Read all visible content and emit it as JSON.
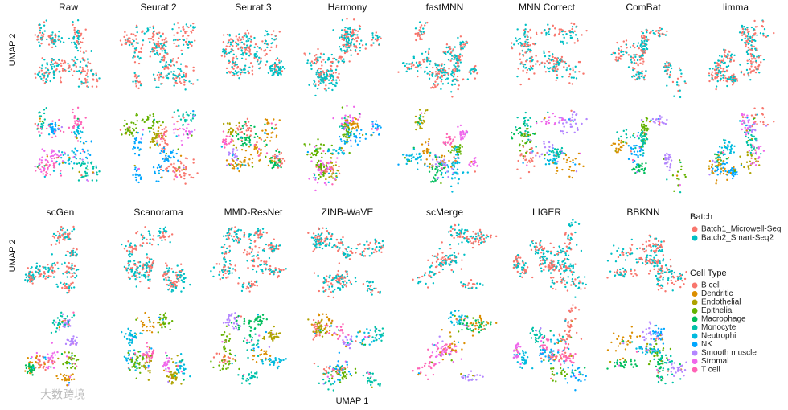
{
  "figure": {
    "panels_top": [
      "Raw",
      "Seurat 2",
      "Seurat 3",
      "Harmony",
      "fastMNN",
      "MNN Correct",
      "ComBat",
      "limma"
    ],
    "panels_bottom": [
      "scGen",
      "Scanorama",
      "MMD-ResNet",
      "ZINB-WaVE",
      "scMerge",
      "LIGER",
      "BBKNN"
    ],
    "y_labels": [
      "UMAP 2",
      "UMAP 2"
    ],
    "x_label": "UMAP 1",
    "batch_legend": {
      "title": "Batch",
      "items": [
        {
          "name": "Batch1_Microwell-Seq",
          "color": "#F8766D"
        },
        {
          "name": "Batch2_Smart-Seq2",
          "color": "#00BFC4"
        }
      ]
    },
    "cell_legend": {
      "title": "Cell Type",
      "items": [
        {
          "name": "B cell",
          "color": "#F8766D"
        },
        {
          "name": "Dendritic",
          "color": "#DB8E00"
        },
        {
          "name": "Endothelial",
          "color": "#AEA200"
        },
        {
          "name": "Epithelial",
          "color": "#64B200"
        },
        {
          "name": "Macrophage",
          "color": "#00BD5C"
        },
        {
          "name": "Monocyte",
          "color": "#00C1A7"
        },
        {
          "name": "Neutrophil",
          "color": "#00BADE"
        },
        {
          "name": "NK",
          "color": "#00A6FF"
        },
        {
          "name": "Smooth muscle",
          "color": "#B385FF"
        },
        {
          "name": "Stromal",
          "color": "#EF67EB"
        },
        {
          "name": "T cell",
          "color": "#FF63B6"
        }
      ]
    },
    "watermark": "大数跨境"
  }
}
